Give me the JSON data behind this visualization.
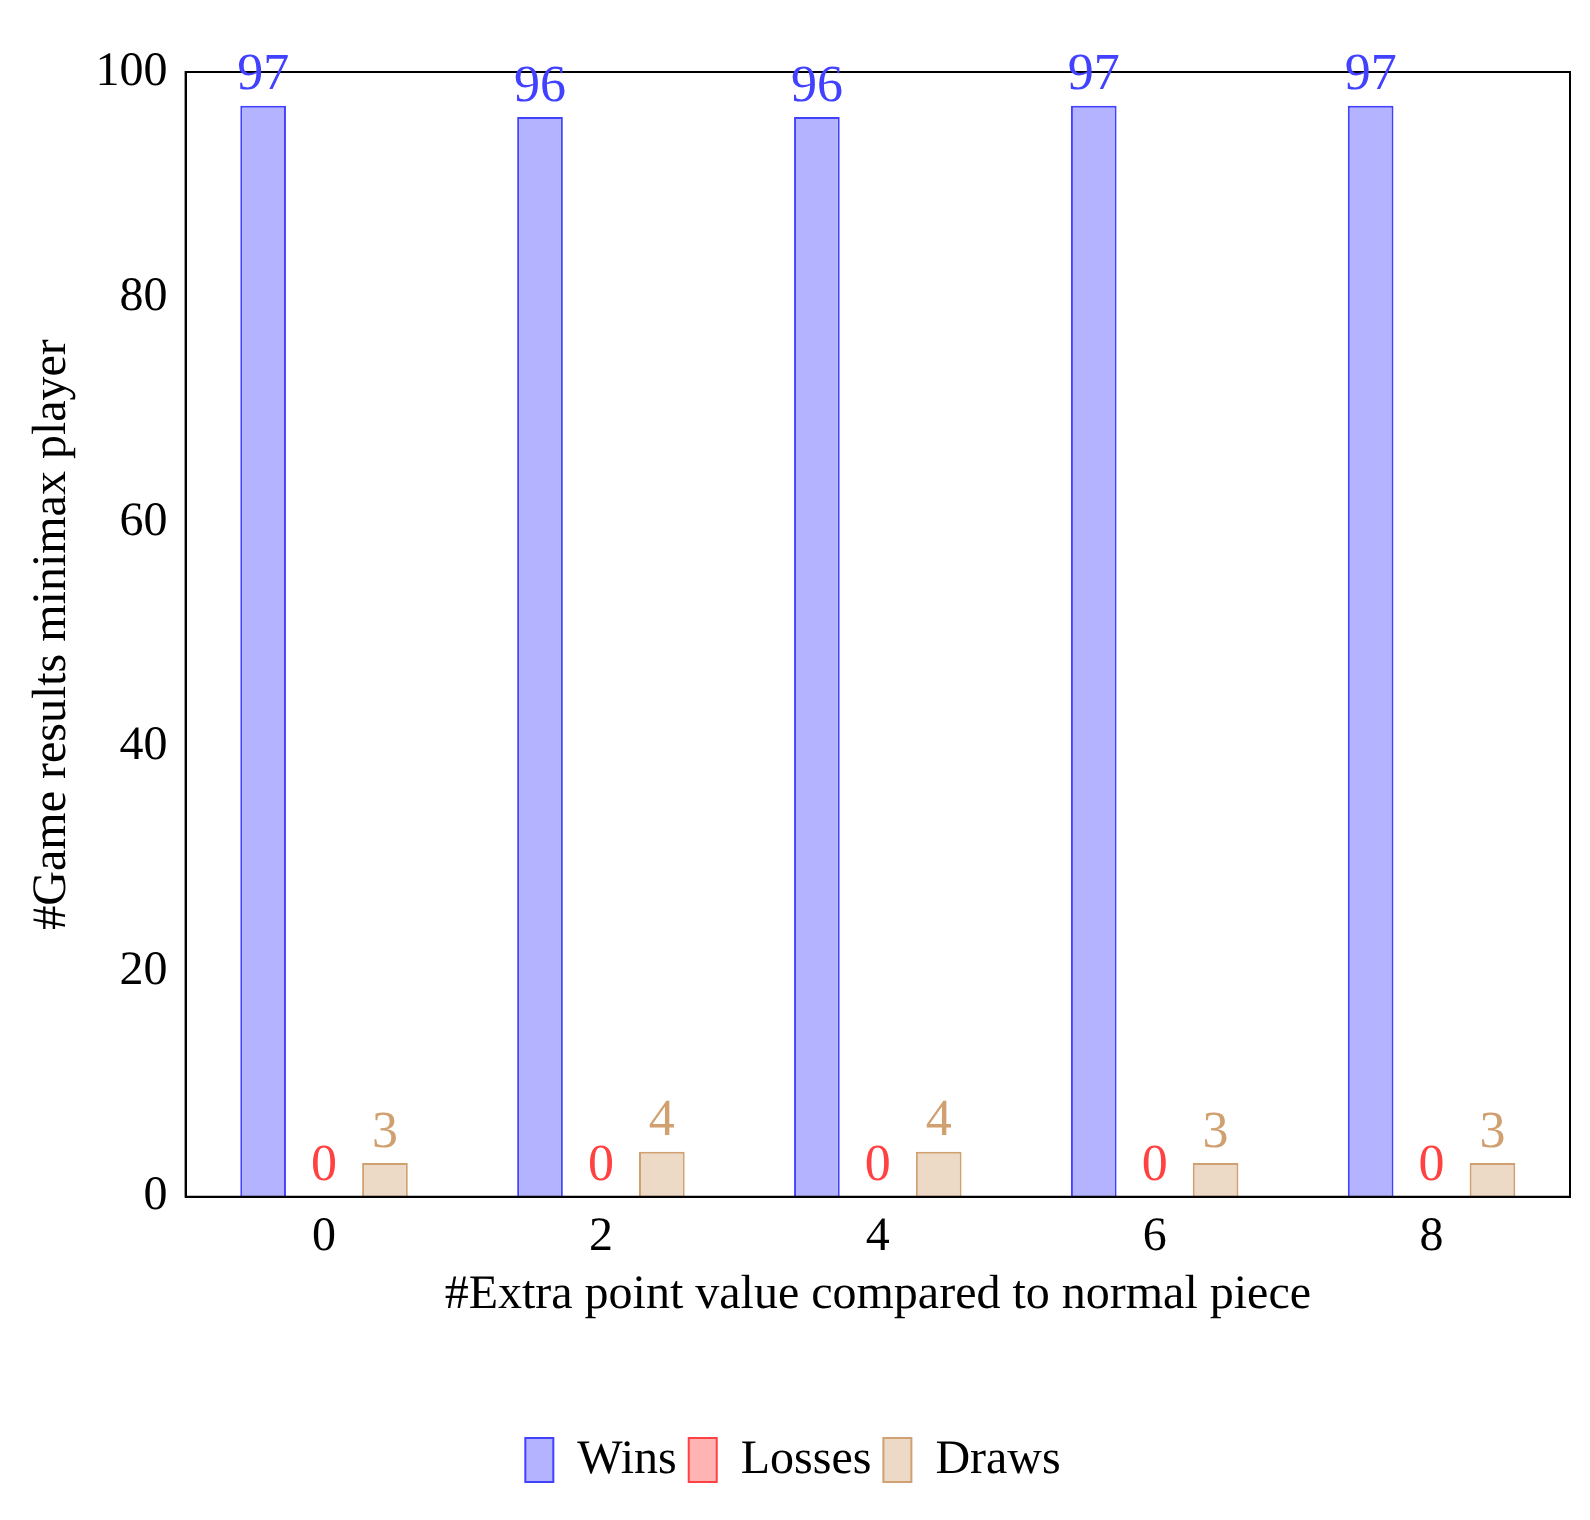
{
  "chart_data": {
    "type": "bar",
    "xlabel": "#Extra point value compared to normal piece",
    "ylabel": "#Game results minimax player",
    "categories": [
      "0",
      "2",
      "4",
      "6",
      "8"
    ],
    "series": [
      {
        "name": "Wins",
        "color": "#b3b3ff",
        "values": [
          97,
          96,
          96,
          97,
          97
        ]
      },
      {
        "name": "Losses",
        "color": "#ffb3b3",
        "values": [
          0,
          0,
          0,
          0,
          0
        ]
      },
      {
        "name": "Draws",
        "color": "#ecd9c6",
        "values": [
          3,
          4,
          4,
          3,
          3
        ]
      }
    ],
    "ylim": [
      0,
      100
    ],
    "yticks": [
      0,
      20,
      40,
      60,
      80,
      100
    ],
    "grid": false,
    "legend": "bottom",
    "data_labels": true
  }
}
